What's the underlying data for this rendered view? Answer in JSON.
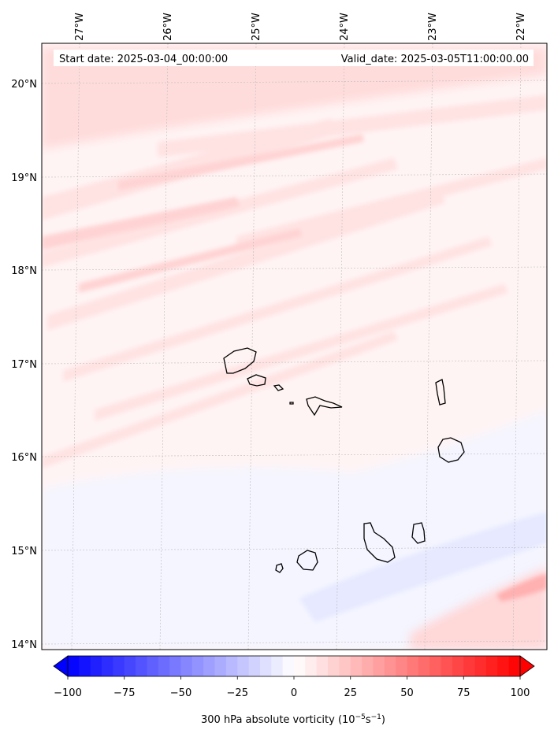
{
  "map": {
    "start_label": "Start date: 2025-03-04_00:00:00",
    "valid_label": "Valid_date: 2025-03-05T11:00:00.00",
    "lon_ticks": [
      "27°W",
      "26°W",
      "25°W",
      "24°W",
      "23°W",
      "22°W"
    ],
    "lat_ticks": [
      "20°N",
      "19°N",
      "18°N",
      "17°N",
      "16°N",
      "15°N",
      "14°N"
    ],
    "islands": [
      "Santo Antão",
      "São Vicente",
      "Santa Luzia",
      "Branco",
      "São Nicolau",
      "Sal",
      "Boa Vista",
      "Santiago",
      "Maio",
      "Fogo",
      "Brava"
    ]
  },
  "colorbar": {
    "ticks": [
      "−100",
      "−75",
      "−50",
      "−25",
      "0",
      "25",
      "50",
      "75",
      "100"
    ],
    "min": -100,
    "max": 100,
    "levels": 40,
    "label_prefix": "300 hPa absolute vorticity (10",
    "label_exp1": "−5",
    "label_mid": "s",
    "label_exp2": "−1",
    "label_suffix": ")",
    "low_color": "#0000ff",
    "high_color": "#ff0000"
  },
  "colors": {
    "coast": "#000000",
    "grid": "#bbbbbb",
    "weak_positive": "#ffe6e6",
    "moderate_positive": "#ffd1d1",
    "weak_negative": "#eef0ff"
  }
}
